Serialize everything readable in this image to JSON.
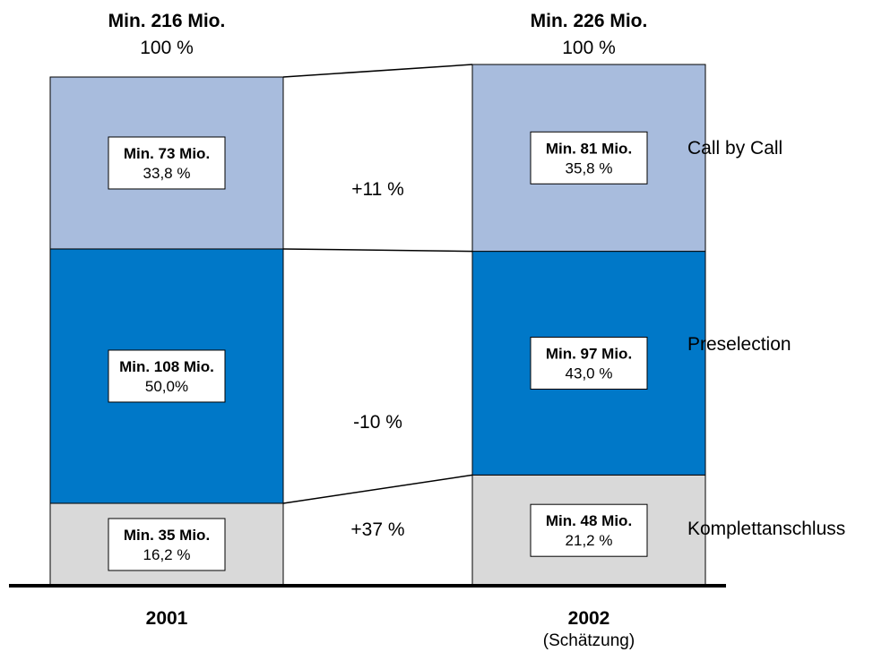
{
  "chart_data": {
    "type": "bar",
    "stacked": true,
    "unit_note": "Min. … Mio.",
    "categories": [
      "2001",
      "2002"
    ],
    "category_subtitles": [
      "",
      "(Schätzung)"
    ],
    "totals": [
      {
        "value_label": "Min. 216 Mio.",
        "pct_label": "100 %",
        "value": 216
      },
      {
        "value_label": "Min. 226 Mio.",
        "pct_label": "100 %",
        "value": 226
      }
    ],
    "series": [
      {
        "name": "Komplettanschluss",
        "color": "#d9d9d9",
        "values": [
          35,
          48
        ],
        "value_labels": [
          "Min. 35 Mio.",
          "Min. 48 Mio."
        ],
        "pct_labels": [
          "16,2 %",
          "21,2 %"
        ],
        "change_label": "+37 %"
      },
      {
        "name": "Preselection",
        "color": "#0078c8",
        "values": [
          108,
          97
        ],
        "value_labels": [
          "Min. 108 Mio.",
          "Min. 97 Mio."
        ],
        "pct_labels": [
          "50,0%",
          "43,0 %"
        ],
        "change_label": "-10 %"
      },
      {
        "name": "Call by Call",
        "color": "#a8bcdd",
        "values": [
          73,
          81
        ],
        "value_labels": [
          "Min. 73 Mio.",
          "Min. 81 Mio."
        ],
        "pct_labels": [
          "33,8 %",
          "35,8 %"
        ],
        "change_label": "+11 %"
      }
    ],
    "legend_placement": "right, beside each segment",
    "grid": false
  }
}
